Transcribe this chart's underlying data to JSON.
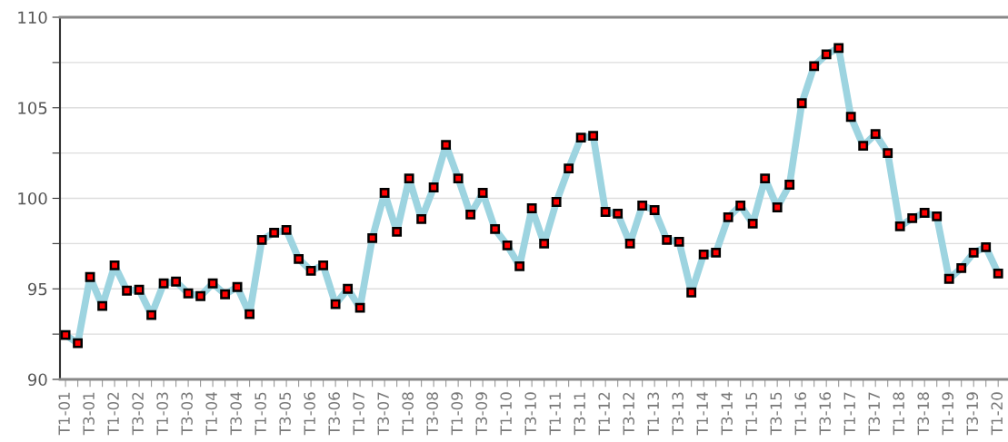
{
  "chart_data": {
    "type": "line",
    "categories": [
      "T1-01",
      null,
      "T3-01",
      null,
      "T1-02",
      null,
      "T3-02",
      null,
      "T1-03",
      null,
      "T3-03",
      null,
      "T1-04",
      null,
      "T3-04",
      null,
      "T1-05",
      null,
      "T3-05",
      null,
      "T1-06",
      null,
      "T3-06",
      null,
      "T1-07",
      null,
      "T3-07",
      null,
      "T1-08",
      null,
      "T3-08",
      null,
      "T1-09",
      null,
      "T3-09",
      null,
      "T1-10",
      null,
      "T3-10",
      null,
      "T1-11",
      null,
      "T3-11",
      null,
      "T1-12",
      null,
      "T3-12",
      null,
      "T1-13",
      null,
      "T3-13",
      null,
      "T1-14",
      null,
      "T3-14",
      null,
      "T1-15",
      null,
      "T3-15",
      null,
      "T1-16",
      null,
      "T3-16",
      null,
      "T1-17",
      null,
      "T3-17",
      null,
      "T1-18",
      null,
      "T3-18",
      null,
      "T1-19",
      null,
      "T3-19",
      null,
      "T1-20"
    ],
    "series": [
      {
        "color": "#9dd4e0",
        "values": [
          92.45,
          92.0,
          95.65,
          94.05,
          96.3,
          94.9,
          94.95,
          93.55,
          95.3,
          95.4,
          94.75,
          94.6,
          95.3,
          94.7,
          95.1,
          93.6,
          97.7,
          98.1,
          98.25,
          96.65,
          96.0,
          96.3,
          94.15,
          95.0,
          93.95,
          97.8,
          100.3,
          98.15,
          101.1,
          98.85,
          100.6,
          102.95,
          101.1,
          99.1,
          100.3,
          98.3,
          97.4,
          96.25,
          99.45,
          97.5,
          99.8,
          101.65,
          103.35,
          103.45,
          99.25,
          99.15,
          97.5,
          99.6,
          99.35,
          97.7,
          97.6,
          94.8,
          96.9,
          97.0,
          98.95,
          99.6,
          98.6,
          101.1,
          99.5,
          100.75,
          105.25,
          107.3,
          107.95,
          108.3,
          104.5,
          102.9,
          103.55,
          102.5,
          98.45,
          98.9,
          99.2,
          99.0,
          95.55,
          96.15,
          97.0,
          97.3,
          95.85
        ]
      }
    ],
    "ylim": [
      90,
      110
    ],
    "yticks": [
      90,
      {
        "value": 92.5,
        "label": null
      },
      95,
      {
        "value": 97.5,
        "label": null
      },
      100,
      {
        "value": 102.5,
        "label": null
      },
      105,
      {
        "value": 107.5,
        "label": null
      },
      110
    ],
    "grid": "y",
    "marker": "square",
    "line_style": "solid",
    "legend": false
  }
}
